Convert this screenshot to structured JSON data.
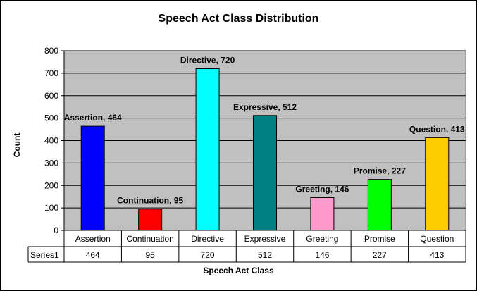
{
  "chart_data": {
    "type": "bar",
    "title": "Speech Act Class Distribution",
    "xlabel": "Speech Act Class",
    "ylabel": "Count",
    "ylim": [
      0,
      800
    ],
    "yticks": [
      0,
      100,
      200,
      300,
      400,
      500,
      600,
      700,
      800
    ],
    "grid": true,
    "categories": [
      "Assertion",
      "Continuation",
      "Directive",
      "Expressive",
      "Greeting",
      "Promise",
      "Question"
    ],
    "series": [
      {
        "name": "Series1",
        "values": [
          464,
          95,
          720,
          512,
          146,
          227,
          413
        ],
        "colors": [
          "#0000ff",
          "#ff0000",
          "#00ffff",
          "#008080",
          "#ff99cc",
          "#00ff00",
          "#ffcc00"
        ]
      }
    ],
    "data_labels": [
      "Assertion, 464",
      "Continuation, 95",
      "Directive, 720",
      "Expressive, 512",
      "Greeting, 146",
      "Promise, 227",
      "Question, 413"
    ],
    "data_table": {
      "row_label": "Series1",
      "values": [
        "464",
        "95",
        "720",
        "512",
        "146",
        "227",
        "413"
      ]
    },
    "plot_background": "#c0c0c0"
  }
}
